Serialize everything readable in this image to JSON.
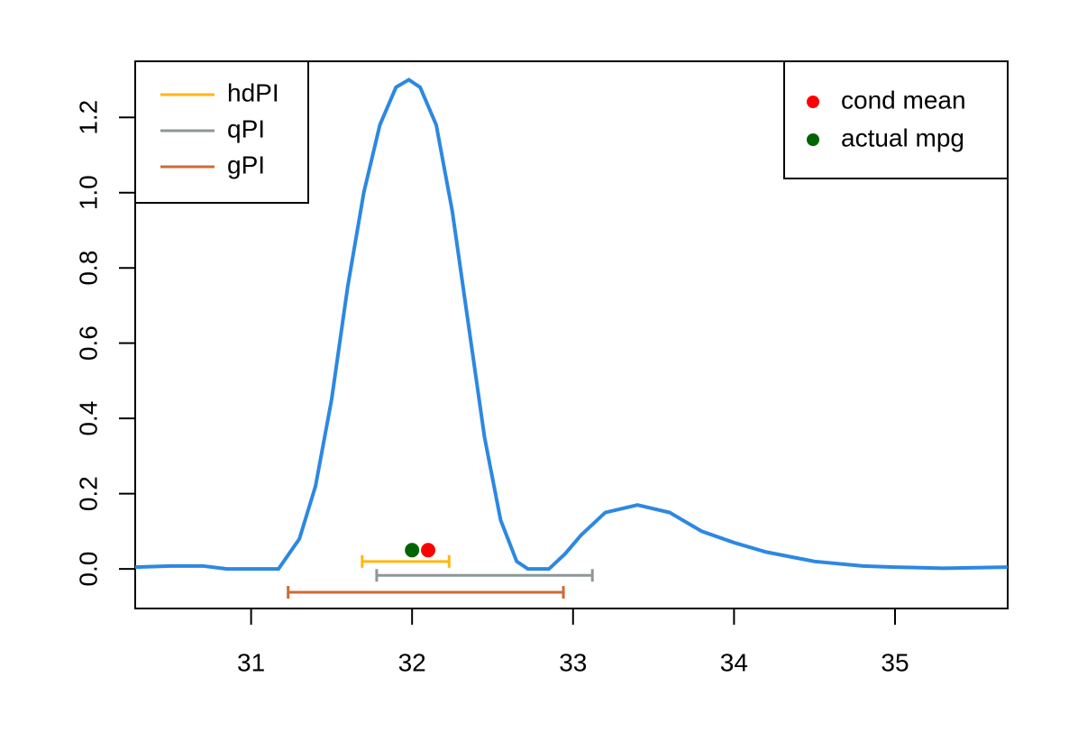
{
  "chart_data": {
    "type": "line",
    "x": [
      30.28,
      30.5,
      30.7,
      30.85,
      31.0,
      31.17,
      31.3,
      31.4,
      31.5,
      31.6,
      31.7,
      31.8,
      31.9,
      31.98,
      32.05,
      32.15,
      32.25,
      32.35,
      32.45,
      32.55,
      32.65,
      32.72,
      32.85,
      32.95,
      33.05,
      33.2,
      33.4,
      33.6,
      33.8,
      34.0,
      34.2,
      34.5,
      34.8,
      35.0,
      35.3,
      35.7
    ],
    "series": [
      {
        "color": "#2c88e2",
        "values": [
          0.005,
          0.008,
          0.008,
          0.0,
          0.0,
          0.0,
          0.08,
          0.22,
          0.45,
          0.75,
          1.0,
          1.18,
          1.28,
          1.3,
          1.28,
          1.18,
          0.95,
          0.65,
          0.35,
          0.13,
          0.02,
          0.0,
          0.0,
          0.04,
          0.09,
          0.15,
          0.17,
          0.15,
          0.1,
          0.07,
          0.045,
          0.02,
          0.008,
          0.005,
          0.002,
          0.005
        ]
      }
    ],
    "intervals": [
      {
        "name": "hdPI",
        "color": "#ffb612",
        "lower": 31.69,
        "upper": 32.23,
        "y": 0.02
      },
      {
        "name": "qPI",
        "color": "#8d9797",
        "lower": 31.78,
        "upper": 33.12,
        "y": -0.017
      },
      {
        "name": "gPI",
        "color": "#cf6a36",
        "lower": 31.23,
        "upper": 32.94,
        "y": -0.062
      }
    ],
    "points": [
      {
        "name": "cond mean",
        "color": "#ff0000",
        "x": 32.1,
        "y": 0.05
      },
      {
        "name": "actual mpg",
        "color": "#006400",
        "x": 32.0,
        "y": 0.05
      }
    ],
    "xlim": [
      30.28,
      35.7
    ],
    "ylim": [
      -0.105,
      1.349
    ],
    "xticks": [
      31,
      32,
      33,
      34,
      35
    ],
    "yticks": [
      {
        "value": 0,
        "label": "0.0"
      },
      0.2,
      0.4,
      0.6,
      0.8,
      {
        "value": 1,
        "label": "1.0"
      },
      1.2
    ]
  }
}
